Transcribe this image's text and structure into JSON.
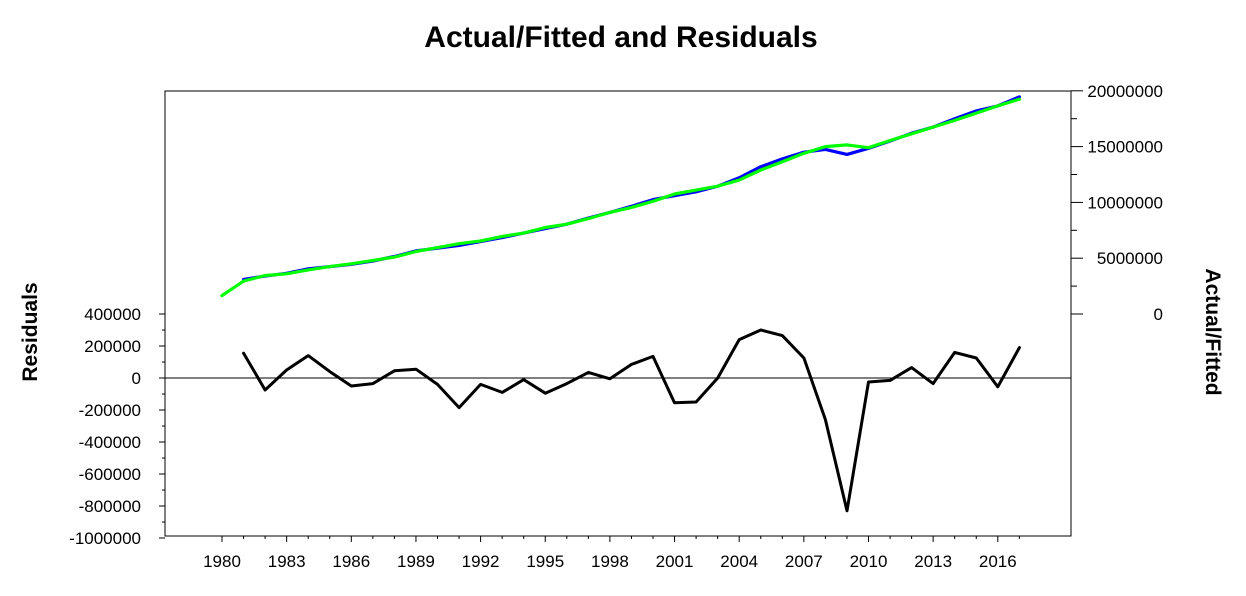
{
  "chart_data": {
    "type": "line",
    "title": "Actual/Fitted and Residuals",
    "left_axis_label": "Residuals",
    "right_axis_label": "Actual/Fitted",
    "x_ticks": [
      "1980",
      "1983",
      "1986",
      "1989",
      "1992",
      "1995",
      "1998",
      "2001",
      "2004",
      "2007",
      "2010",
      "2013",
      "2016"
    ],
    "left_ticks": [
      "400000",
      "200000",
      "0",
      "-200000",
      "-400000",
      "-600000",
      "-800000",
      "-1000000"
    ],
    "left_tick_values": [
      400000,
      200000,
      0,
      -200000,
      -400000,
      -600000,
      -800000,
      -1000000
    ],
    "right_ticks": [
      "20000000",
      "15000000",
      "10000000",
      "5000000",
      "0"
    ],
    "right_tick_values": [
      20000000,
      15000000,
      10000000,
      5000000,
      0
    ],
    "left_ylim": [
      -1000000,
      400000
    ],
    "right_ylim": [
      0,
      20000000
    ],
    "x_range": [
      1978,
      2019
    ],
    "series": [
      {
        "role": "actual",
        "color": "#0000ff",
        "axis": "right",
        "x": [
          1981,
          1982,
          1983,
          1984,
          1985,
          1986,
          1987,
          1988,
          1989,
          1990,
          1991,
          1992,
          1993,
          1994,
          1995,
          1996,
          1997,
          1998,
          1999,
          2000,
          2001,
          2002,
          2003,
          2004,
          2005,
          2006,
          2007,
          2008,
          2009,
          2010,
          2011,
          2012,
          2013,
          2014,
          2015,
          2016,
          2017
        ],
        "values": [
          3100000,
          3400000,
          3650000,
          4050000,
          4250000,
          4450000,
          4750000,
          5150000,
          5650000,
          5900000,
          6150000,
          6500000,
          6850000,
          7250000,
          7650000,
          8050000,
          8600000,
          9100000,
          9650000,
          10250000,
          10600000,
          10950000,
          11450000,
          12200000,
          13200000,
          13900000,
          14500000,
          14750000,
          14300000,
          14850000,
          15500000,
          16200000,
          16750000,
          17500000,
          18200000,
          18650000,
          19450000
        ]
      },
      {
        "role": "fitted",
        "color": "#00ff00",
        "axis": "right",
        "x": [
          1980,
          1981,
          1982,
          1983,
          1984,
          1985,
          1986,
          1987,
          1988,
          1989,
          1990,
          1991,
          1992,
          1993,
          1994,
          1995,
          1996,
          1997,
          1998,
          1999,
          2000,
          2001,
          2002,
          2003,
          2004,
          2005,
          2006,
          2007,
          2008,
          2009,
          2010,
          2011,
          2012,
          2013,
          2014,
          2015,
          2016,
          2017
        ],
        "values": [
          1650000,
          2950000,
          3450000,
          3600000,
          3950000,
          4250000,
          4500000,
          4800000,
          5100000,
          5600000,
          5950000,
          6300000,
          6550000,
          6950000,
          7250000,
          7750000,
          8050000,
          8550000,
          9100000,
          9550000,
          10100000,
          10750000,
          11100000,
          11450000,
          12000000,
          12900000,
          13650000,
          14400000,
          15000000,
          15150000,
          14900000,
          15550000,
          16150000,
          16750000,
          17350000,
          18000000,
          18650000,
          19250000
        ]
      },
      {
        "role": "residual",
        "color": "#000000",
        "axis": "left",
        "x": [
          1981,
          1982,
          1983,
          1984,
          1985,
          1986,
          1987,
          1988,
          1989,
          1990,
          1991,
          1992,
          1993,
          1994,
          1995,
          1996,
          1997,
          1998,
          1999,
          2000,
          2001,
          2002,
          2003,
          2004,
          2005,
          2006,
          2007,
          2008,
          2009,
          2010,
          2011,
          2012,
          2013,
          2014,
          2015,
          2016,
          2017
        ],
        "values": [
          155000,
          -75000,
          50000,
          140000,
          40000,
          -50000,
          -35000,
          45000,
          55000,
          -40000,
          -185000,
          -40000,
          -90000,
          -10000,
          -95000,
          -35000,
          35000,
          -5000,
          85000,
          135000,
          -155000,
          -150000,
          0,
          240000,
          300000,
          265000,
          125000,
          -260000,
          -830000,
          -25000,
          -15000,
          65000,
          -35000,
          160000,
          125000,
          -55000,
          190000
        ]
      }
    ],
    "zero_line": 0,
    "grid": false,
    "legend": "none"
  }
}
